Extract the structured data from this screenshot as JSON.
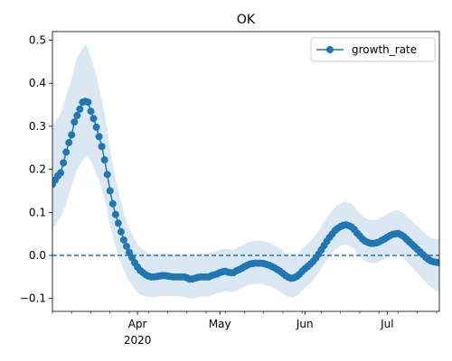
{
  "chart_data": {
    "type": "line",
    "title": "OK",
    "xlabel": "",
    "ylabel": "",
    "x_range": [
      "2020-03-01",
      "2020-07-20"
    ],
    "ylim": [
      -0.13,
      0.52
    ],
    "y_ticks": [
      -0.1,
      0.0,
      0.1,
      0.2,
      0.3,
      0.4,
      0.5
    ],
    "y_tick_labels": [
      "−0.1",
      "0.0",
      "0.1",
      "0.2",
      "0.3",
      "0.4",
      "0.5"
    ],
    "x_major_ticks": [
      {
        "date": "2020-04-01",
        "label": "Apr",
        "sublabel": "2020"
      },
      {
        "date": "2020-05-01",
        "label": "May",
        "sublabel": ""
      },
      {
        "date": "2020-06-01",
        "label": "Jun",
        "sublabel": ""
      },
      {
        "date": "2020-07-01",
        "label": "Jul",
        "sublabel": ""
      }
    ],
    "x_minor_tick_interval_days": 7,
    "grid": false,
    "legend": {
      "position": "top-right",
      "entries": [
        "growth_rate"
      ]
    },
    "reference_line": {
      "y": 0.0,
      "style": "dashed",
      "color": "#1f77b4"
    },
    "colors": {
      "series": "#1f77b4",
      "band": "#dbe8f4"
    },
    "series": [
      {
        "name": "growth_rate",
        "marker": "circle",
        "x": [
          "2020-03-01",
          "2020-03-02",
          "2020-03-03",
          "2020-03-04",
          "2020-03-05",
          "2020-03-06",
          "2020-03-07",
          "2020-03-08",
          "2020-03-09",
          "2020-03-10",
          "2020-03-11",
          "2020-03-12",
          "2020-03-13",
          "2020-03-14",
          "2020-03-15",
          "2020-03-16",
          "2020-03-17",
          "2020-03-18",
          "2020-03-19",
          "2020-03-20",
          "2020-03-21",
          "2020-03-22",
          "2020-03-23",
          "2020-03-24",
          "2020-03-25",
          "2020-03-26",
          "2020-03-27",
          "2020-03-28",
          "2020-03-29",
          "2020-03-30",
          "2020-03-31",
          "2020-04-01",
          "2020-04-02",
          "2020-04-03",
          "2020-04-04",
          "2020-04-05",
          "2020-04-06",
          "2020-04-07",
          "2020-04-08",
          "2020-04-09",
          "2020-04-10",
          "2020-04-11",
          "2020-04-12",
          "2020-04-13",
          "2020-04-14",
          "2020-04-15",
          "2020-04-16",
          "2020-04-17",
          "2020-04-18",
          "2020-04-19",
          "2020-04-20",
          "2020-04-21",
          "2020-04-22",
          "2020-04-23",
          "2020-04-24",
          "2020-04-25",
          "2020-04-26",
          "2020-04-27",
          "2020-04-28",
          "2020-04-29",
          "2020-04-30",
          "2020-05-01",
          "2020-05-02",
          "2020-05-03",
          "2020-05-04",
          "2020-05-05",
          "2020-05-06",
          "2020-05-07",
          "2020-05-08",
          "2020-05-09",
          "2020-05-10",
          "2020-05-11",
          "2020-05-12",
          "2020-05-13",
          "2020-05-14",
          "2020-05-15",
          "2020-05-16",
          "2020-05-17",
          "2020-05-18",
          "2020-05-19",
          "2020-05-20",
          "2020-05-21",
          "2020-05-22",
          "2020-05-23",
          "2020-05-24",
          "2020-05-25",
          "2020-05-26",
          "2020-05-27",
          "2020-05-28",
          "2020-05-29",
          "2020-05-30",
          "2020-05-31",
          "2020-06-01",
          "2020-06-02",
          "2020-06-03",
          "2020-06-04",
          "2020-06-05",
          "2020-06-06",
          "2020-06-07",
          "2020-06-08",
          "2020-06-09",
          "2020-06-10",
          "2020-06-11",
          "2020-06-12",
          "2020-06-13",
          "2020-06-14",
          "2020-06-15",
          "2020-06-16",
          "2020-06-17",
          "2020-06-18",
          "2020-06-19",
          "2020-06-20",
          "2020-06-21",
          "2020-06-22",
          "2020-06-23",
          "2020-06-24",
          "2020-06-25",
          "2020-06-26",
          "2020-06-27",
          "2020-06-28",
          "2020-06-29",
          "2020-06-30",
          "2020-07-01",
          "2020-07-02",
          "2020-07-03",
          "2020-07-04",
          "2020-07-05",
          "2020-07-06",
          "2020-07-07",
          "2020-07-08",
          "2020-07-09",
          "2020-07-10",
          "2020-07-11",
          "2020-07-12",
          "2020-07-13",
          "2020-07-14",
          "2020-07-15",
          "2020-07-16",
          "2020-07-17",
          "2020-07-18",
          "2020-07-19",
          "2020-07-20"
        ],
        "values": [
          0.165,
          0.175,
          0.185,
          0.192,
          0.215,
          0.24,
          0.262,
          0.28,
          0.31,
          0.325,
          0.34,
          0.356,
          0.358,
          0.356,
          0.335,
          0.318,
          0.298,
          0.276,
          0.253,
          0.222,
          0.188,
          0.15,
          0.12,
          0.095,
          0.075,
          0.055,
          0.036,
          0.021,
          0.007,
          -0.005,
          -0.017,
          -0.027,
          -0.035,
          -0.04,
          -0.045,
          -0.048,
          -0.05,
          -0.05,
          -0.049,
          -0.048,
          -0.047,
          -0.047,
          -0.048,
          -0.049,
          -0.05,
          -0.05,
          -0.05,
          -0.05,
          -0.05,
          -0.052,
          -0.055,
          -0.055,
          -0.053,
          -0.051,
          -0.05,
          -0.05,
          -0.05,
          -0.05,
          -0.047,
          -0.045,
          -0.043,
          -0.04,
          -0.038,
          -0.037,
          -0.039,
          -0.04,
          -0.04,
          -0.036,
          -0.033,
          -0.03,
          -0.026,
          -0.023,
          -0.02,
          -0.019,
          -0.018,
          -0.018,
          -0.018,
          -0.019,
          -0.021,
          -0.023,
          -0.026,
          -0.029,
          -0.033,
          -0.037,
          -0.042,
          -0.047,
          -0.051,
          -0.053,
          -0.052,
          -0.049,
          -0.044,
          -0.037,
          -0.031,
          -0.026,
          -0.02,
          -0.014,
          -0.006,
          0.003,
          0.013,
          0.023,
          0.033,
          0.042,
          0.05,
          0.058,
          0.063,
          0.067,
          0.07,
          0.071,
          0.069,
          0.066,
          0.06,
          0.052,
          0.045,
          0.038,
          0.033,
          0.03,
          0.028,
          0.028,
          0.029,
          0.031,
          0.035,
          0.038,
          0.042,
          0.046,
          0.049,
          0.05,
          0.051,
          0.048,
          0.044,
          0.038,
          0.032,
          0.026,
          0.02,
          0.014,
          0.008,
          0.002,
          -0.004,
          -0.009,
          -0.013,
          -0.015,
          -0.016,
          -0.017
        ],
        "lower": [
          0.06,
          0.07,
          0.08,
          0.09,
          0.1,
          0.12,
          0.14,
          0.16,
          0.18,
          0.2,
          0.21,
          0.22,
          0.23,
          0.23,
          0.22,
          0.205,
          0.19,
          0.175,
          0.155,
          0.13,
          0.1,
          0.07,
          0.045,
          0.02,
          0.0,
          -0.02,
          -0.035,
          -0.05,
          -0.06,
          -0.07,
          -0.078,
          -0.085,
          -0.09,
          -0.093,
          -0.095,
          -0.097,
          -0.097,
          -0.097,
          -0.096,
          -0.095,
          -0.094,
          -0.094,
          -0.094,
          -0.095,
          -0.095,
          -0.095,
          -0.095,
          -0.095,
          -0.096,
          -0.098,
          -0.1,
          -0.1,
          -0.099,
          -0.097,
          -0.096,
          -0.096,
          -0.096,
          -0.095,
          -0.093,
          -0.09,
          -0.088,
          -0.086,
          -0.084,
          -0.083,
          -0.084,
          -0.085,
          -0.085,
          -0.082,
          -0.079,
          -0.076,
          -0.073,
          -0.07,
          -0.068,
          -0.067,
          -0.066,
          -0.066,
          -0.066,
          -0.067,
          -0.069,
          -0.071,
          -0.074,
          -0.077,
          -0.081,
          -0.085,
          -0.089,
          -0.093,
          -0.096,
          -0.098,
          -0.097,
          -0.094,
          -0.089,
          -0.082,
          -0.076,
          -0.07,
          -0.064,
          -0.057,
          -0.049,
          -0.04,
          -0.03,
          -0.02,
          -0.01,
          -0.002,
          0.006,
          0.013,
          0.018,
          0.022,
          0.024,
          0.025,
          0.023,
          0.02,
          0.014,
          0.006,
          -0.001,
          -0.008,
          -0.013,
          -0.016,
          -0.018,
          -0.018,
          -0.017,
          -0.015,
          -0.011,
          -0.008,
          -0.004,
          0.0,
          0.003,
          0.004,
          0.004,
          0.0,
          -0.006,
          -0.013,
          -0.02,
          -0.027,
          -0.034,
          -0.041,
          -0.048,
          -0.055,
          -0.062,
          -0.068,
          -0.074,
          -0.079,
          -0.083,
          -0.087
        ],
        "upper": [
          0.3,
          0.31,
          0.32,
          0.33,
          0.35,
          0.37,
          0.39,
          0.41,
          0.44,
          0.46,
          0.47,
          0.48,
          0.49,
          0.48,
          0.46,
          0.44,
          0.42,
          0.39,
          0.36,
          0.33,
          0.29,
          0.25,
          0.21,
          0.18,
          0.15,
          0.125,
          0.1,
          0.08,
          0.065,
          0.05,
          0.037,
          0.026,
          0.018,
          0.013,
          0.009,
          0.005,
          0.003,
          0.002,
          0.003,
          0.004,
          0.005,
          0.005,
          0.004,
          0.003,
          0.002,
          0.002,
          0.002,
          0.002,
          0.002,
          0.0,
          -0.002,
          -0.002,
          0.0,
          0.002,
          0.004,
          0.004,
          0.004,
          0.005,
          0.007,
          0.009,
          0.011,
          0.013,
          0.015,
          0.016,
          0.015,
          0.014,
          0.014,
          0.017,
          0.02,
          0.023,
          0.026,
          0.029,
          0.032,
          0.033,
          0.034,
          0.034,
          0.034,
          0.033,
          0.031,
          0.029,
          0.026,
          0.023,
          0.019,
          0.015,
          0.01,
          0.005,
          0.001,
          -0.001,
          0.0,
          0.003,
          0.008,
          0.015,
          0.021,
          0.027,
          0.033,
          0.04,
          0.048,
          0.057,
          0.067,
          0.077,
          0.087,
          0.096,
          0.104,
          0.112,
          0.117,
          0.121,
          0.124,
          0.125,
          0.123,
          0.12,
          0.114,
          0.106,
          0.099,
          0.092,
          0.087,
          0.084,
          0.082,
          0.082,
          0.083,
          0.085,
          0.089,
          0.092,
          0.096,
          0.1,
          0.103,
          0.104,
          0.105,
          0.102,
          0.098,
          0.092,
          0.086,
          0.08,
          0.074,
          0.068,
          0.062,
          0.056,
          0.05,
          0.045,
          0.041,
          0.039,
          0.038,
          0.037
        ]
      }
    ]
  }
}
